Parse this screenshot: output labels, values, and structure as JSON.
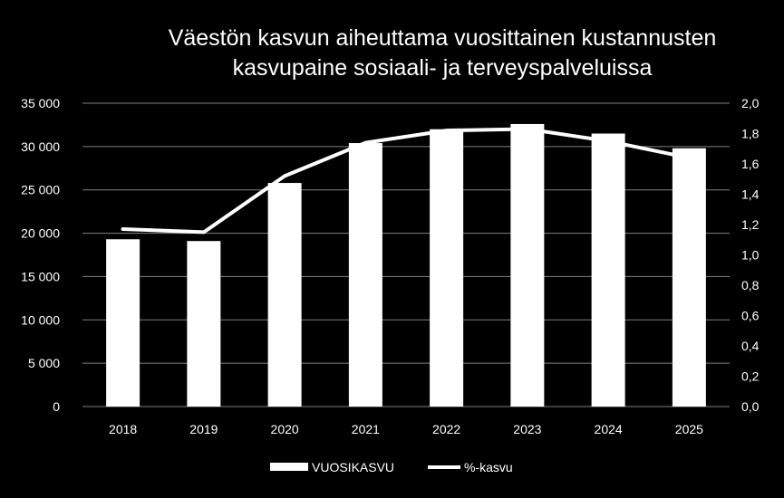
{
  "chart_data": {
    "type": "bar",
    "title_lines": [
      "Väestön kasvun aiheuttama vuosittainen  kustannusten",
      "kasvupaine  sosiaali- ja terveyspalveluissa"
    ],
    "categories": [
      "2018",
      "2019",
      "2020",
      "2021",
      "2022",
      "2023",
      "2024",
      "2025"
    ],
    "series": [
      {
        "name": "VUOSIKASVU",
        "type": "bar",
        "axis": "left",
        "values": [
          19300,
          19100,
          25800,
          30400,
          32000,
          32600,
          31500,
          29800
        ]
      },
      {
        "name": "%-kasvu",
        "type": "line",
        "axis": "right",
        "values": [
          1.17,
          1.15,
          1.52,
          1.74,
          1.82,
          1.83,
          1.75,
          1.64
        ]
      }
    ],
    "y_left": {
      "range": [
        0,
        35000
      ],
      "ticks": [
        "0",
        "5 000",
        "10 000",
        "15 000",
        "20 000",
        "25 000",
        "30 000",
        "35 000"
      ]
    },
    "y_right": {
      "range": [
        0,
        2.0
      ],
      "ticks": [
        "0,0",
        "0,2",
        "0,4",
        "0,6",
        "0,8",
        "1,0",
        "1,2",
        "1,4",
        "1,6",
        "1,8",
        "2,0"
      ]
    },
    "grid": true,
    "legend_position": "bottom",
    "colors": {
      "background": "#000000",
      "bars": "#ffffff",
      "line": "#ffffff",
      "grid": "#808080",
      "text": "#ffffff"
    }
  }
}
